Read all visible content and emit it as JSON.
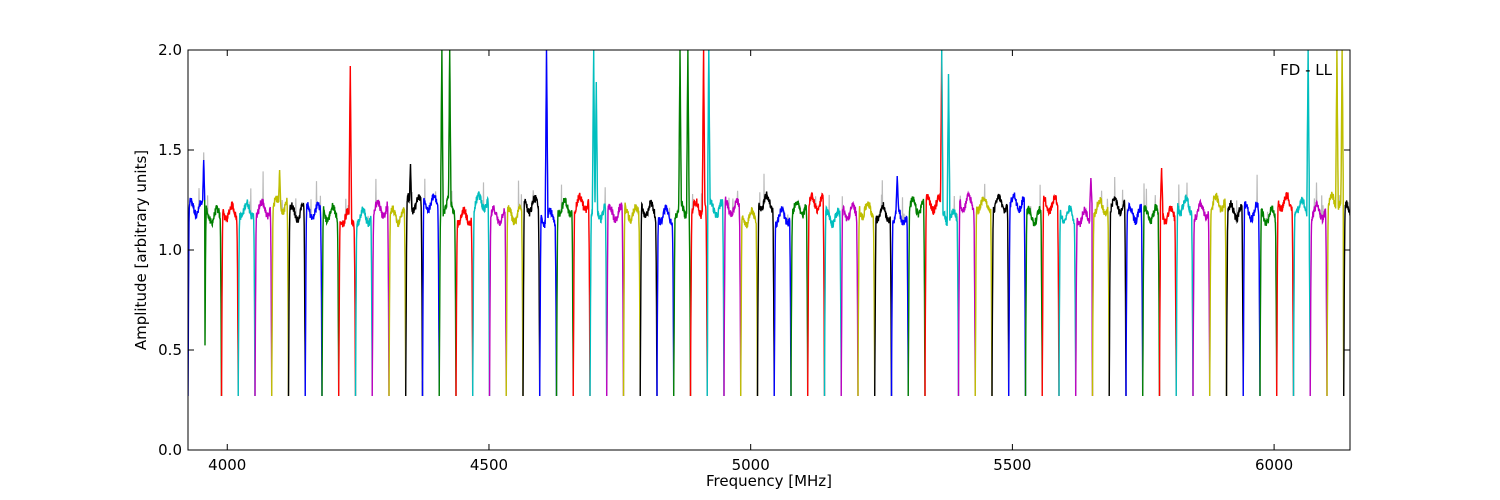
{
  "chart_data": {
    "type": "line",
    "title": "",
    "xlabel": "Frequency [MHz]",
    "ylabel": "Amplitude [arbitrary units]",
    "xlim": [
      3925,
      6145
    ],
    "ylim": [
      0.0,
      2.0
    ],
    "xticks": [
      4000,
      4500,
      5000,
      5500,
      6000
    ],
    "yticks": [
      0.0,
      0.5,
      1.0,
      1.5,
      2.0
    ],
    "xtick_labels": [
      "4000",
      "4500",
      "5000",
      "5500",
      "6000"
    ],
    "ytick_labels": [
      "0.0",
      "0.5",
      "1.0",
      "1.5",
      "2.0"
    ],
    "grid": false,
    "annotation": "FD - LL",
    "color_cycle": [
      "#0000ff",
      "#008000",
      "#ff0000",
      "#00bfbf",
      "#bf00bf",
      "#bfbf00",
      "#000000"
    ],
    "flagged_color": "#bbbbbb",
    "channel_width_mhz": 32,
    "first_channel_start_mhz": 3925,
    "typical_plateau": 1.2,
    "edge_minimum": 0.27,
    "highlighted_features": [
      {
        "x": 3955,
        "y": 1.45
      },
      {
        "x": 4100,
        "y": 1.4
      },
      {
        "x": 4235,
        "y": 1.92
      },
      {
        "x": 4350,
        "y": 1.43
      },
      {
        "x": 4410,
        "y": 2.0
      },
      {
        "x": 4425,
        "y": 2.0
      },
      {
        "x": 4610,
        "y": 2.0
      },
      {
        "x": 4700,
        "y": 2.0
      },
      {
        "x": 4705,
        "y": 1.84
      },
      {
        "x": 4865,
        "y": 2.0
      },
      {
        "x": 4880,
        "y": 2.0
      },
      {
        "x": 4910,
        "y": 2.0
      },
      {
        "x": 4920,
        "y": 2.0
      },
      {
        "x": 5280,
        "y": 1.37
      },
      {
        "x": 5365,
        "y": 2.0
      },
      {
        "x": 5378,
        "y": 1.88
      },
      {
        "x": 5650,
        "y": 1.36
      },
      {
        "x": 5785,
        "y": 1.41
      },
      {
        "x": 6065,
        "y": 2.0
      },
      {
        "x": 6120,
        "y": 2.0
      },
      {
        "x": 6130,
        "y": 2.0
      }
    ]
  }
}
